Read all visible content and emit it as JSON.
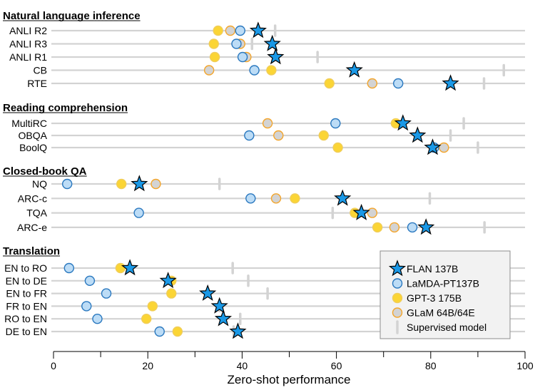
{
  "chart_data": {
    "type": "scatter",
    "title": "",
    "xlabel": "Zero-shot performance",
    "ylabel": "",
    "xlim": [
      0,
      100
    ],
    "xticks": [
      0,
      20,
      40,
      60,
      80,
      100
    ],
    "xtick_labels": [
      "0",
      "20",
      "40",
      "60",
      "80",
      "100"
    ],
    "minor_xticks": [
      10,
      30,
      50,
      70,
      90
    ],
    "grid": false,
    "legend_position": "bottom-right",
    "series_styles": {
      "flan": {
        "name": "FLAN 137B",
        "marker": "star",
        "fill": "#1a98e6",
        "stroke": "#000000"
      },
      "lamda": {
        "name": "LaMDA-PT137B",
        "marker": "circle",
        "fill": "#bcdcf6",
        "stroke": "#2a78bf"
      },
      "gpt3": {
        "name": "GPT-3 175B",
        "marker": "circle",
        "fill": "#fbd535",
        "stroke": "#f0cd5a"
      },
      "glam": {
        "name": "GLaM 64B/64E",
        "marker": "circle",
        "fill": "#d3d3d3",
        "stroke": "#f4a52a"
      },
      "supervised": {
        "name": "Supervised model",
        "marker": "vline",
        "fill": "#d3d3d3",
        "stroke": "#d3d3d3"
      }
    },
    "legend": [
      "FLAN 137B",
      "LaMDA-PT137B",
      "GPT-3 175B",
      "GLaM 64B/64E",
      "Supervised model"
    ],
    "groups": [
      {
        "title": "Natural language inference",
        "tasks": [
          {
            "label": "ANLI R2",
            "flan": 43.4,
            "lamda": 39.6,
            "gpt3": 34.9,
            "glam": 37.5,
            "supervised": 47.0
          },
          {
            "label": "ANLI R3",
            "flan": 46.4,
            "lamda": 38.8,
            "gpt3": 34.0,
            "glam": 39.6,
            "supervised": 42.1
          },
          {
            "label": "ANLI R1",
            "flan": 47.1,
            "lamda": 40.1,
            "gpt3": 34.2,
            "glam": 40.9,
            "supervised": 56.0
          },
          {
            "label": "CB",
            "flan": 63.8,
            "lamda": 42.6,
            "gpt3": 46.2,
            "glam": 33.0,
            "supervised": 95.5
          },
          {
            "label": "RTE",
            "flan": 84.2,
            "lamda": 73.1,
            "gpt3": 58.5,
            "glam": 67.6,
            "supervised": 91.3
          }
        ]
      },
      {
        "title": "Reading comprehension",
        "tasks": [
          {
            "label": "MultiRC",
            "flan": 74.1,
            "lamda": 59.8,
            "gpt3": 72.6,
            "glam": 45.4,
            "supervised": 87.0
          },
          {
            "label": "OBQA",
            "flan": 77.2,
            "lamda": 41.5,
            "gpt3": 57.3,
            "glam": 47.7,
            "supervised": 84.2
          },
          {
            "label": "BoolQ",
            "flan": 80.4,
            "lamda": 80.7,
            "gpt3": 60.3,
            "glam": 82.8,
            "supervised": 90.0
          }
        ]
      },
      {
        "title": "Closed-book QA",
        "tasks": [
          {
            "label": "NQ",
            "flan": 18.2,
            "lamda": 2.9,
            "gpt3": 14.4,
            "glam": 21.7,
            "supervised": 35.2
          },
          {
            "label": "ARC-c",
            "flan": 61.3,
            "lamda": 41.8,
            "gpt3": 51.2,
            "glam": 47.2,
            "supervised": 79.8
          },
          {
            "label": "TQA",
            "flan": 65.3,
            "lamda": 18.1,
            "gpt3": 63.9,
            "glam": 67.6,
            "supervised": 59.2
          },
          {
            "label": "ARC-e",
            "flan": 79.0,
            "lamda": 76.1,
            "gpt3": 68.7,
            "glam": 72.3,
            "supervised": 91.4
          }
        ]
      },
      {
        "title": "Translation",
        "tasks": [
          {
            "label": "EN to RO",
            "flan": 16.2,
            "lamda": 3.3,
            "gpt3": 14.2,
            "glam": null,
            "supervised": 38.0
          },
          {
            "label": "EN to DE",
            "flan": 24.3,
            "lamda": 7.7,
            "gpt3": 25.0,
            "glam": null,
            "supervised": 41.3
          },
          {
            "label": "EN to FR",
            "flan": 32.7,
            "lamda": 11.2,
            "gpt3": 25.0,
            "glam": null,
            "supervised": 45.4
          },
          {
            "label": "FR to EN",
            "flan": 35.2,
            "lamda": 7.0,
            "gpt3": 21.0,
            "glam": null,
            "supervised": 35.2
          },
          {
            "label": "RO to EN",
            "flan": 36.0,
            "lamda": 9.3,
            "gpt3": 19.7,
            "glam": null,
            "supervised": 39.6
          },
          {
            "label": "DE to EN",
            "flan": 39.1,
            "lamda": 22.5,
            "gpt3": 26.3,
            "glam": null,
            "supervised": 38.2
          }
        ]
      }
    ]
  }
}
